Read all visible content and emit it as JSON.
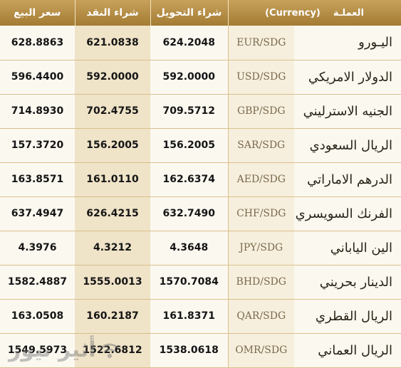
{
  "headers": {
    "sell": "سعر البيع",
    "cash": "شراء النقد",
    "transfer": "شراء التحويل",
    "currency_ar": "العملـة",
    "currency_en": "(Currency)"
  },
  "rows": [
    {
      "name": "اليـورو",
      "pair": "EUR/SDG",
      "transfer": "624.2048",
      "cash": "621.0838",
      "sell": "628.8863"
    },
    {
      "name": "الدولار الامريكي",
      "pair": "USD/SDG",
      "transfer": "592.0000",
      "cash": "592.0000",
      "sell": "596.4400"
    },
    {
      "name": "الجنيه الاسترليني",
      "pair": "GBP/SDG",
      "transfer": "709.5712",
      "cash": "702.4755",
      "sell": "714.8930"
    },
    {
      "name": "الريال السعودي",
      "pair": "SAR/SDG",
      "transfer": "156.2005",
      "cash": "156.2005",
      "sell": "157.3720"
    },
    {
      "name": "الدرهم الاماراتي",
      "pair": "AED/SDG",
      "transfer": "162.6374",
      "cash": "161.0110",
      "sell": "163.8571"
    },
    {
      "name": "الفرنك السويسري",
      "pair": "CHF/SDG",
      "transfer": "632.7490",
      "cash": "626.4215",
      "sell": "637.4947"
    },
    {
      "name": "الين الياباني",
      "pair": "JPY/SDG",
      "transfer": "4.3648",
      "cash": "4.3212",
      "sell": "4.3976"
    },
    {
      "name": "الدينار بحريني",
      "pair": "BHD/SDG",
      "transfer": "1570.7084",
      "cash": "1555.0013",
      "sell": "1582.4887"
    },
    {
      "name": "الريال القطري",
      "pair": "QAR/SDG",
      "transfer": "161.8371",
      "cash": "160.2187",
      "sell": "163.0508"
    },
    {
      "name": "الريال العماني",
      "pair": "OMR/SDG",
      "transfer": "1538.0618",
      "cash": "1522.6812",
      "sell": "1549.5973"
    }
  ],
  "watermark": {
    "text": "أثير نيوز",
    "icon": "wifi-icon"
  },
  "colors": {
    "header": "#b68d45",
    "background": "#fbf8f0",
    "cash_column": "#efe3c8",
    "pair_text": "#7a6a4e"
  }
}
